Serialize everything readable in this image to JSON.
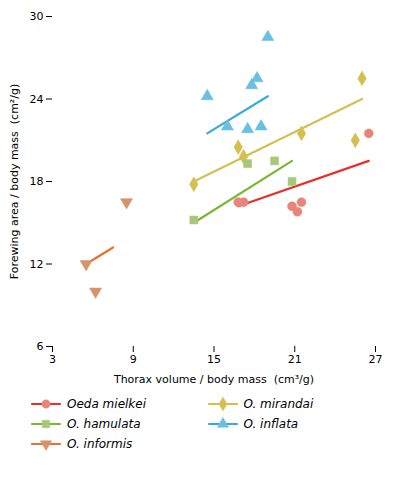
{
  "chart_data": {
    "type": "scatter",
    "xlabel": "Thorax volume / body mass  (cm³/g)",
    "ylabel": "Forewing area / body mass  (cm²/g)",
    "xlim": [
      3,
      27
    ],
    "ylim": [
      6,
      30
    ],
    "xticks": [
      3,
      9,
      15,
      21,
      27
    ],
    "yticks": [
      6,
      12,
      18,
      24,
      30
    ],
    "grid": false,
    "legend": "bottom",
    "series": [
      {
        "name": "Oeda mielkei",
        "color": "#E8857A",
        "marker": "circle",
        "x": [
          16.8,
          17.2,
          20.8,
          21.2,
          21.5,
          26.5
        ],
        "values": [
          16.5,
          16.5,
          16.2,
          15.8,
          16.5,
          21.5
        ],
        "fit": {
          "type": "line",
          "color": "#E8302A",
          "x": [
            16.8,
            26.5
          ],
          "values": [
            16.2,
            19.5
          ]
        }
      },
      {
        "name": "O. mirandai",
        "color": "#D4C050",
        "marker": "diamond",
        "x": [
          13.5,
          16.8,
          17.2,
          21.5,
          25.5,
          26.0
        ],
        "values": [
          17.8,
          20.5,
          19.8,
          21.5,
          21.0,
          25.5
        ],
        "fit": {
          "type": "line",
          "color": "#D4C050",
          "x": [
            13.5,
            26.0
          ],
          "values": [
            18.0,
            24.0
          ]
        }
      },
      {
        "name": "O. hamulata",
        "color": "#A8C878",
        "marker": "square",
        "x": [
          13.5,
          17.5,
          19.5,
          20.8
        ],
        "values": [
          15.2,
          19.3,
          19.5,
          18.0
        ],
        "fit": {
          "type": "line",
          "color": "#7AB832",
          "x": [
            13.5,
            20.8
          ],
          "values": [
            15.0,
            19.5
          ]
        }
      },
      {
        "name": "O. inflata",
        "color": "#6BBFE0",
        "marker": "triangle-up",
        "x": [
          14.5,
          16.0,
          17.5,
          17.8,
          18.2,
          18.5,
          19.0
        ],
        "values": [
          24.2,
          22.0,
          21.8,
          25.0,
          25.5,
          22.0,
          28.5
        ],
        "fit": {
          "type": "line",
          "color": "#38AADC",
          "x": [
            14.5,
            19.0
          ],
          "values": [
            21.5,
            24.2
          ]
        }
      },
      {
        "name": "O. informis",
        "color": "#D4956A",
        "marker": "triangle-down",
        "x": [
          5.5,
          6.2,
          8.5
        ],
        "values": [
          12.0,
          10.0,
          16.5
        ],
        "fit": {
          "type": "line",
          "color": "#E87030",
          "x": [
            5.5,
            7.5
          ],
          "values": [
            12.0,
            13.2
          ]
        }
      }
    ]
  }
}
